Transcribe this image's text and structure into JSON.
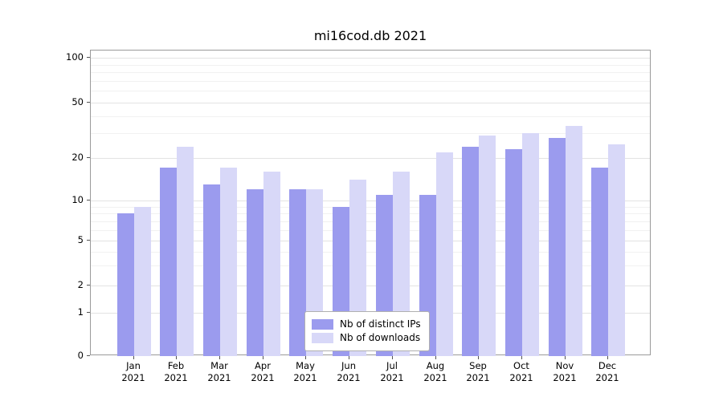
{
  "chart_data": {
    "type": "bar",
    "title": "mi16cod.db 2021",
    "categories": [
      "Jan",
      "Feb",
      "Mar",
      "Apr",
      "May",
      "Jun",
      "Jul",
      "Aug",
      "Sep",
      "Oct",
      "Nov",
      "Dec"
    ],
    "year_label": "2021",
    "series": [
      {
        "name": "Nb of distinct IPs",
        "color": "#9b9bee",
        "values": [
          8,
          17,
          13,
          12,
          12,
          9,
          11,
          11,
          24,
          23,
          28,
          17
        ]
      },
      {
        "name": "Nb of downloads",
        "color": "#d8d8f8",
        "values": [
          9,
          24,
          17,
          16,
          12,
          14,
          16,
          22,
          29,
          30,
          34,
          25
        ]
      }
    ],
    "yticks": [
      0,
      1,
      2,
      5,
      10,
      20,
      50,
      100
    ],
    "ylim": [
      0,
      100
    ],
    "yscale": "symlog",
    "grid": true,
    "legend_position": "lower center"
  }
}
